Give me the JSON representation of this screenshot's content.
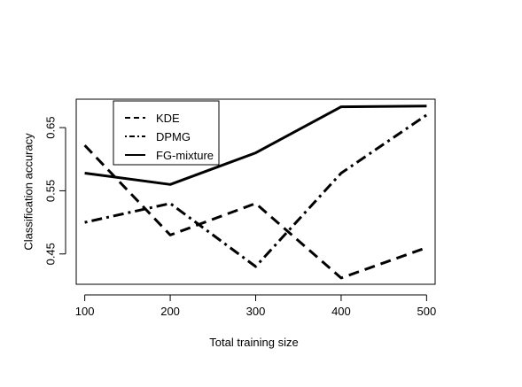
{
  "chart_data": {
    "type": "line",
    "title": "",
    "xlabel": "Total training size",
    "ylabel": "Classification accuracy",
    "x": [
      100,
      200,
      300,
      400,
      500
    ],
    "x_ticks": [
      100,
      200,
      300,
      400,
      500
    ],
    "y_ticks": [
      0.45,
      0.55,
      0.65
    ],
    "xlim": [
      90,
      510
    ],
    "ylim": [
      0.402,
      0.695
    ],
    "grid": false,
    "legend_position": "top-left",
    "series": [
      {
        "name": "KDE",
        "style": "dashed",
        "color": "#000000",
        "values": [
          0.622,
          0.48,
          0.53,
          0.412,
          0.46
        ]
      },
      {
        "name": "DPMG",
        "style": "dotdash",
        "color": "#000000",
        "values": [
          0.5,
          0.53,
          0.43,
          0.578,
          0.67
        ]
      },
      {
        "name": "FG-mixture",
        "style": "solid",
        "color": "#000000",
        "values": [
          0.578,
          0.56,
          0.61,
          0.683,
          0.684
        ]
      }
    ]
  }
}
